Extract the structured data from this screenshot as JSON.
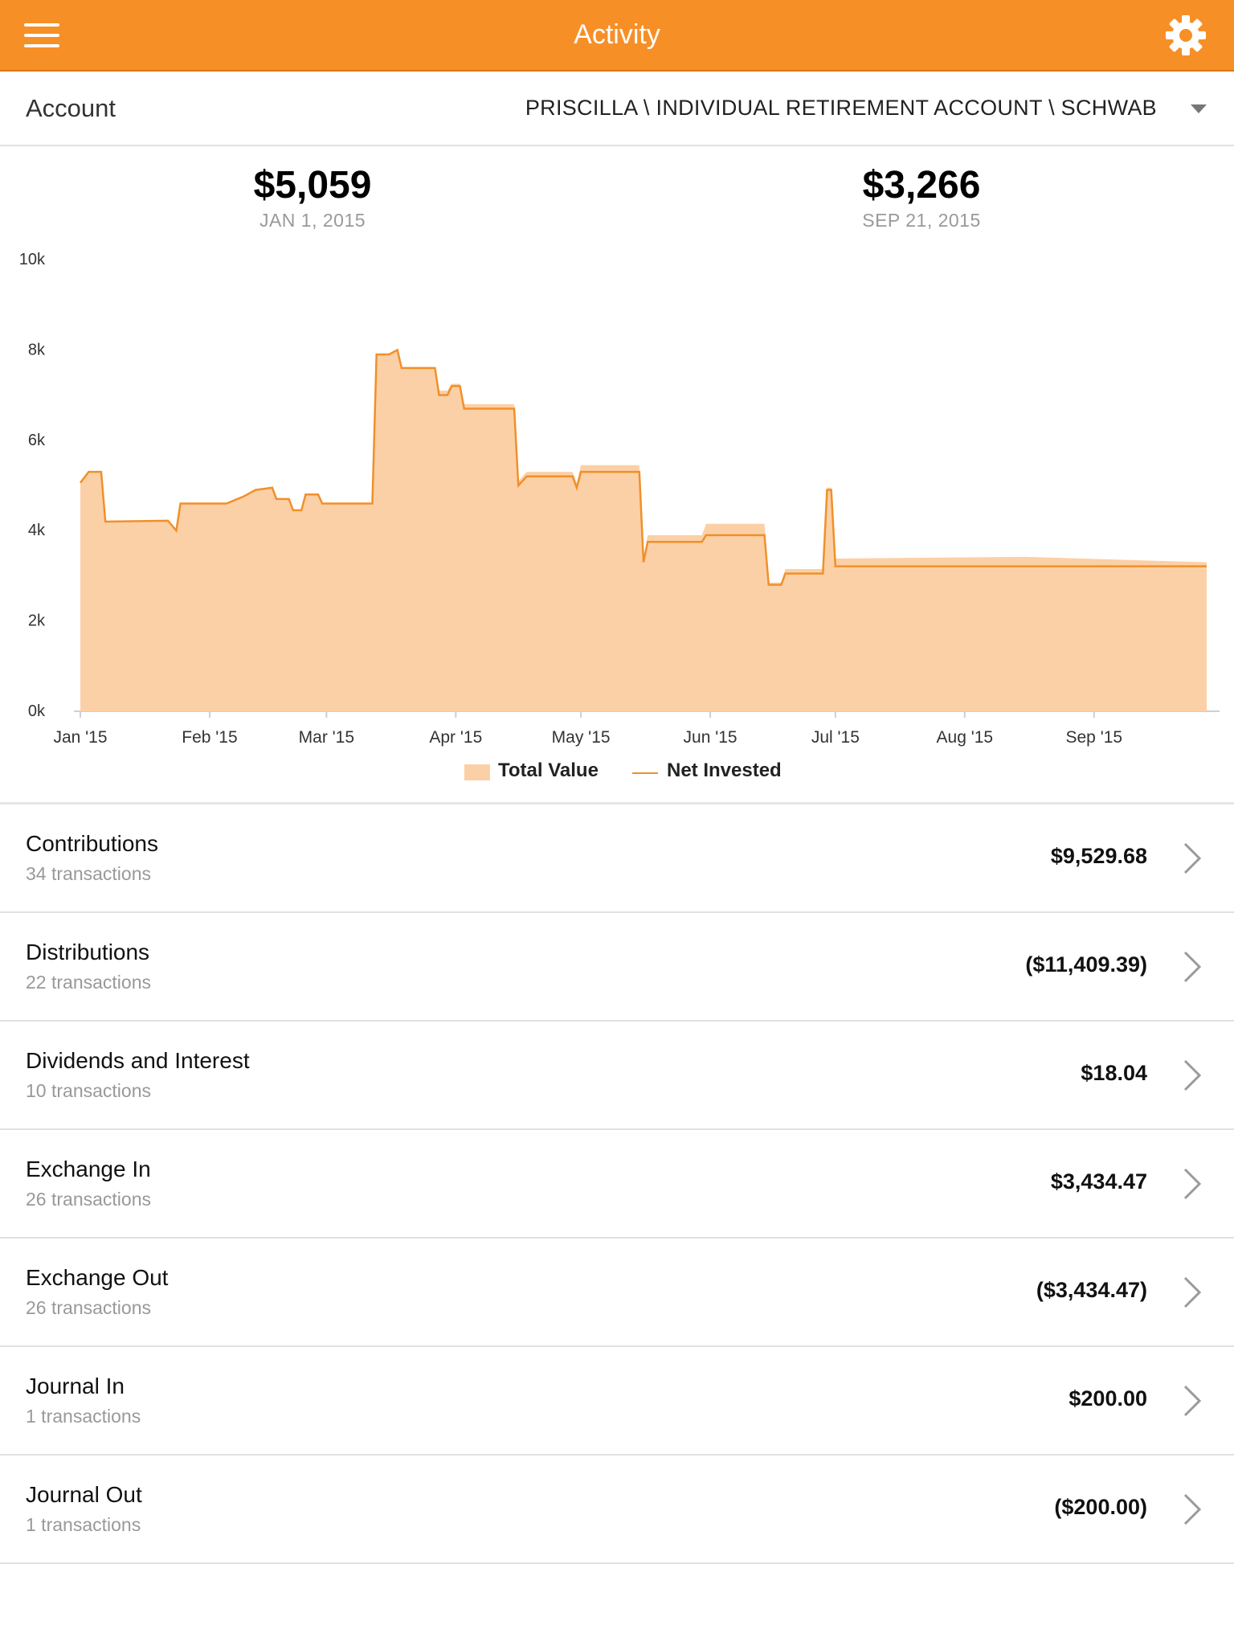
{
  "header": {
    "title": "Activity",
    "menu_icon": "hamburger-menu-icon",
    "settings_icon": "gear-icon",
    "accent_color": "#f78f27"
  },
  "account": {
    "label": "Account",
    "value": "PRISCILLA \\ INDIVIDUAL RETIREMENT ACCOUNT \\ SCHWAB"
  },
  "summary": {
    "start": {
      "amount": "$5,059",
      "date": "JAN 1, 2015"
    },
    "end": {
      "amount": "$3,266",
      "date": "SEP 21, 2015"
    }
  },
  "chart_data": {
    "type": "area",
    "x_ticks": [
      "Jan '15",
      "Feb '15",
      "Mar '15",
      "Apr '15",
      "May '15",
      "Jun '15",
      "Jul '15",
      "Aug '15",
      "Sep '15"
    ],
    "y_ticks": [
      "0k",
      "2k",
      "4k",
      "6k",
      "8k",
      "10k"
    ],
    "ylim": [
      0,
      10000
    ],
    "xlim": [
      "2015-01-01",
      "2015-09-28"
    ],
    "legend": "bottom-center",
    "colors": {
      "total_value": "#fcd0a6",
      "net_invested": "#f0902a"
    },
    "series": [
      {
        "name": "Total Value",
        "points": [
          [
            "2015-01-01",
            5059
          ],
          [
            "2015-01-03",
            5300
          ],
          [
            "2015-01-06",
            5300
          ],
          [
            "2015-01-07",
            4200
          ],
          [
            "2015-01-22",
            4220
          ],
          [
            "2015-01-24",
            4000
          ],
          [
            "2015-01-25",
            4600
          ],
          [
            "2015-02-05",
            4600
          ],
          [
            "2015-02-09",
            4750
          ],
          [
            "2015-02-12",
            4900
          ],
          [
            "2015-02-16",
            4950
          ],
          [
            "2015-02-17",
            4700
          ],
          [
            "2015-02-20",
            4700
          ],
          [
            "2015-02-21",
            4450
          ],
          [
            "2015-02-23",
            4450
          ],
          [
            "2015-02-24",
            4800
          ],
          [
            "2015-02-27",
            4800
          ],
          [
            "2015-02-28",
            4600
          ],
          [
            "2015-03-12",
            4600
          ],
          [
            "2015-03-13",
            7900
          ],
          [
            "2015-03-16",
            7900
          ],
          [
            "2015-03-18",
            8000
          ],
          [
            "2015-03-19",
            7600
          ],
          [
            "2015-03-27",
            7600
          ],
          [
            "2015-03-28",
            7100
          ],
          [
            "2015-03-30",
            7100
          ],
          [
            "2015-03-31",
            7250
          ],
          [
            "2015-04-02",
            7250
          ],
          [
            "2015-04-03",
            6800
          ],
          [
            "2015-04-15",
            6800
          ],
          [
            "2015-04-16",
            5100
          ],
          [
            "2015-04-18",
            5300
          ],
          [
            "2015-04-29",
            5300
          ],
          [
            "2015-04-30",
            5050
          ],
          [
            "2015-05-01",
            5450
          ],
          [
            "2015-05-15",
            5450
          ],
          [
            "2015-05-16",
            3350
          ],
          [
            "2015-05-17",
            3900
          ],
          [
            "2015-05-30",
            3900
          ],
          [
            "2015-05-31",
            4150
          ],
          [
            "2015-06-14",
            4150
          ],
          [
            "2015-06-15",
            2850
          ],
          [
            "2015-06-18",
            2850
          ],
          [
            "2015-06-19",
            3150
          ],
          [
            "2015-06-28",
            3150
          ],
          [
            "2015-06-29",
            4950
          ],
          [
            "2015-06-30",
            4950
          ],
          [
            "2015-07-01",
            3380
          ],
          [
            "2015-08-15",
            3420
          ],
          [
            "2015-09-20",
            3320
          ],
          [
            "2015-09-28",
            3300
          ]
        ]
      },
      {
        "name": "Net Invested",
        "points": [
          [
            "2015-01-01",
            5059
          ],
          [
            "2015-01-03",
            5300
          ],
          [
            "2015-01-06",
            5300
          ],
          [
            "2015-01-07",
            4200
          ],
          [
            "2015-01-22",
            4220
          ],
          [
            "2015-01-24",
            4000
          ],
          [
            "2015-01-25",
            4600
          ],
          [
            "2015-02-05",
            4600
          ],
          [
            "2015-02-09",
            4750
          ],
          [
            "2015-02-12",
            4900
          ],
          [
            "2015-02-16",
            4950
          ],
          [
            "2015-02-17",
            4700
          ],
          [
            "2015-02-20",
            4700
          ],
          [
            "2015-02-21",
            4450
          ],
          [
            "2015-02-23",
            4450
          ],
          [
            "2015-02-24",
            4800
          ],
          [
            "2015-02-27",
            4800
          ],
          [
            "2015-02-28",
            4600
          ],
          [
            "2015-03-12",
            4600
          ],
          [
            "2015-03-13",
            7900
          ],
          [
            "2015-03-16",
            7900
          ],
          [
            "2015-03-18",
            8000
          ],
          [
            "2015-03-19",
            7600
          ],
          [
            "2015-03-27",
            7600
          ],
          [
            "2015-03-28",
            7000
          ],
          [
            "2015-03-30",
            7000
          ],
          [
            "2015-03-31",
            7200
          ],
          [
            "2015-04-02",
            7200
          ],
          [
            "2015-04-03",
            6700
          ],
          [
            "2015-04-15",
            6700
          ],
          [
            "2015-04-16",
            5000
          ],
          [
            "2015-04-18",
            5200
          ],
          [
            "2015-04-29",
            5200
          ],
          [
            "2015-04-30",
            4950
          ],
          [
            "2015-05-01",
            5300
          ],
          [
            "2015-05-15",
            5300
          ],
          [
            "2015-05-16",
            3300
          ],
          [
            "2015-05-17",
            3750
          ],
          [
            "2015-05-30",
            3750
          ],
          [
            "2015-05-31",
            3900
          ],
          [
            "2015-06-14",
            3900
          ],
          [
            "2015-06-15",
            2800
          ],
          [
            "2015-06-18",
            2800
          ],
          [
            "2015-06-19",
            3050
          ],
          [
            "2015-06-28",
            3050
          ],
          [
            "2015-06-29",
            4900
          ],
          [
            "2015-06-30",
            4900
          ],
          [
            "2015-07-01",
            3210
          ],
          [
            "2015-09-28",
            3210
          ]
        ]
      }
    ]
  },
  "categories": [
    {
      "name": "Contributions",
      "count": "34 transactions",
      "amount": "$9,529.68"
    },
    {
      "name": "Distributions",
      "count": "22 transactions",
      "amount": "($11,409.39)"
    },
    {
      "name": "Dividends and Interest",
      "count": "10 transactions",
      "amount": "$18.04"
    },
    {
      "name": "Exchange In",
      "count": "26 transactions",
      "amount": "$3,434.47"
    },
    {
      "name": "Exchange Out",
      "count": "26 transactions",
      "amount": "($3,434.47)"
    },
    {
      "name": "Journal In",
      "count": "1 transactions",
      "amount": "$200.00"
    },
    {
      "name": "Journal Out",
      "count": "1 transactions",
      "amount": "($200.00)"
    }
  ]
}
